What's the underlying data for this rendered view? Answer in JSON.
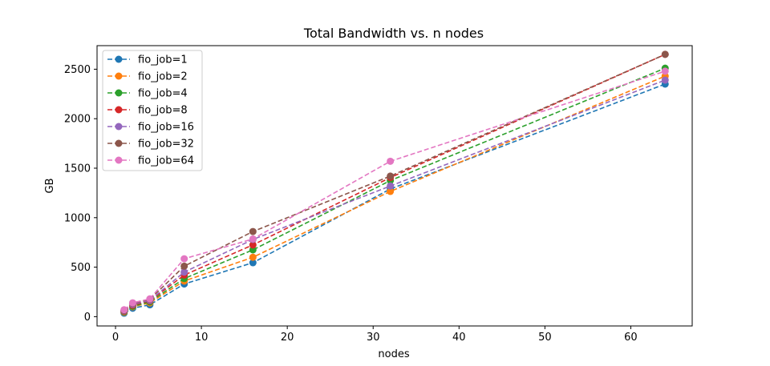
{
  "chart_data": {
    "type": "line",
    "title": "Total Bandwidth vs. n nodes",
    "xlabel": "nodes",
    "ylabel": "GB",
    "xlim": [
      -2.15,
      67.15
    ],
    "ylim": [
      -94,
      2738
    ],
    "xticks": [
      0,
      10,
      20,
      30,
      40,
      50,
      60
    ],
    "yticks": [
      0,
      500,
      1000,
      1500,
      2000,
      2500
    ],
    "grid": false,
    "legend_position": "upper-left",
    "x": [
      1,
      2,
      4,
      8,
      16,
      32,
      64
    ],
    "series": [
      {
        "name": "fio_job=1",
        "color": "#1f77b4",
        "values": [
          35,
          85,
          120,
          330,
          545,
          1290,
          2350
        ]
      },
      {
        "name": "fio_job=2",
        "color": "#ff7f0e",
        "values": [
          45,
          100,
          140,
          360,
          600,
          1265,
          2430
        ]
      },
      {
        "name": "fio_job=4",
        "color": "#2ca02c",
        "values": [
          50,
          105,
          150,
          385,
          675,
          1375,
          2510
        ]
      },
      {
        "name": "fio_job=8",
        "color": "#d62728",
        "values": [
          55,
          115,
          160,
          420,
          725,
          1405,
          2650
        ]
      },
      {
        "name": "fio_job=16",
        "color": "#9467bd",
        "values": [
          60,
          125,
          165,
          450,
          780,
          1320,
          2390
        ]
      },
      {
        "name": "fio_job=32",
        "color": "#8c564b",
        "values": [
          65,
          135,
          175,
          510,
          860,
          1420,
          2650
        ]
      },
      {
        "name": "fio_job=64",
        "color": "#e377c2",
        "values": [
          70,
          140,
          180,
          585,
          785,
          1570,
          2480
        ]
      }
    ]
  }
}
